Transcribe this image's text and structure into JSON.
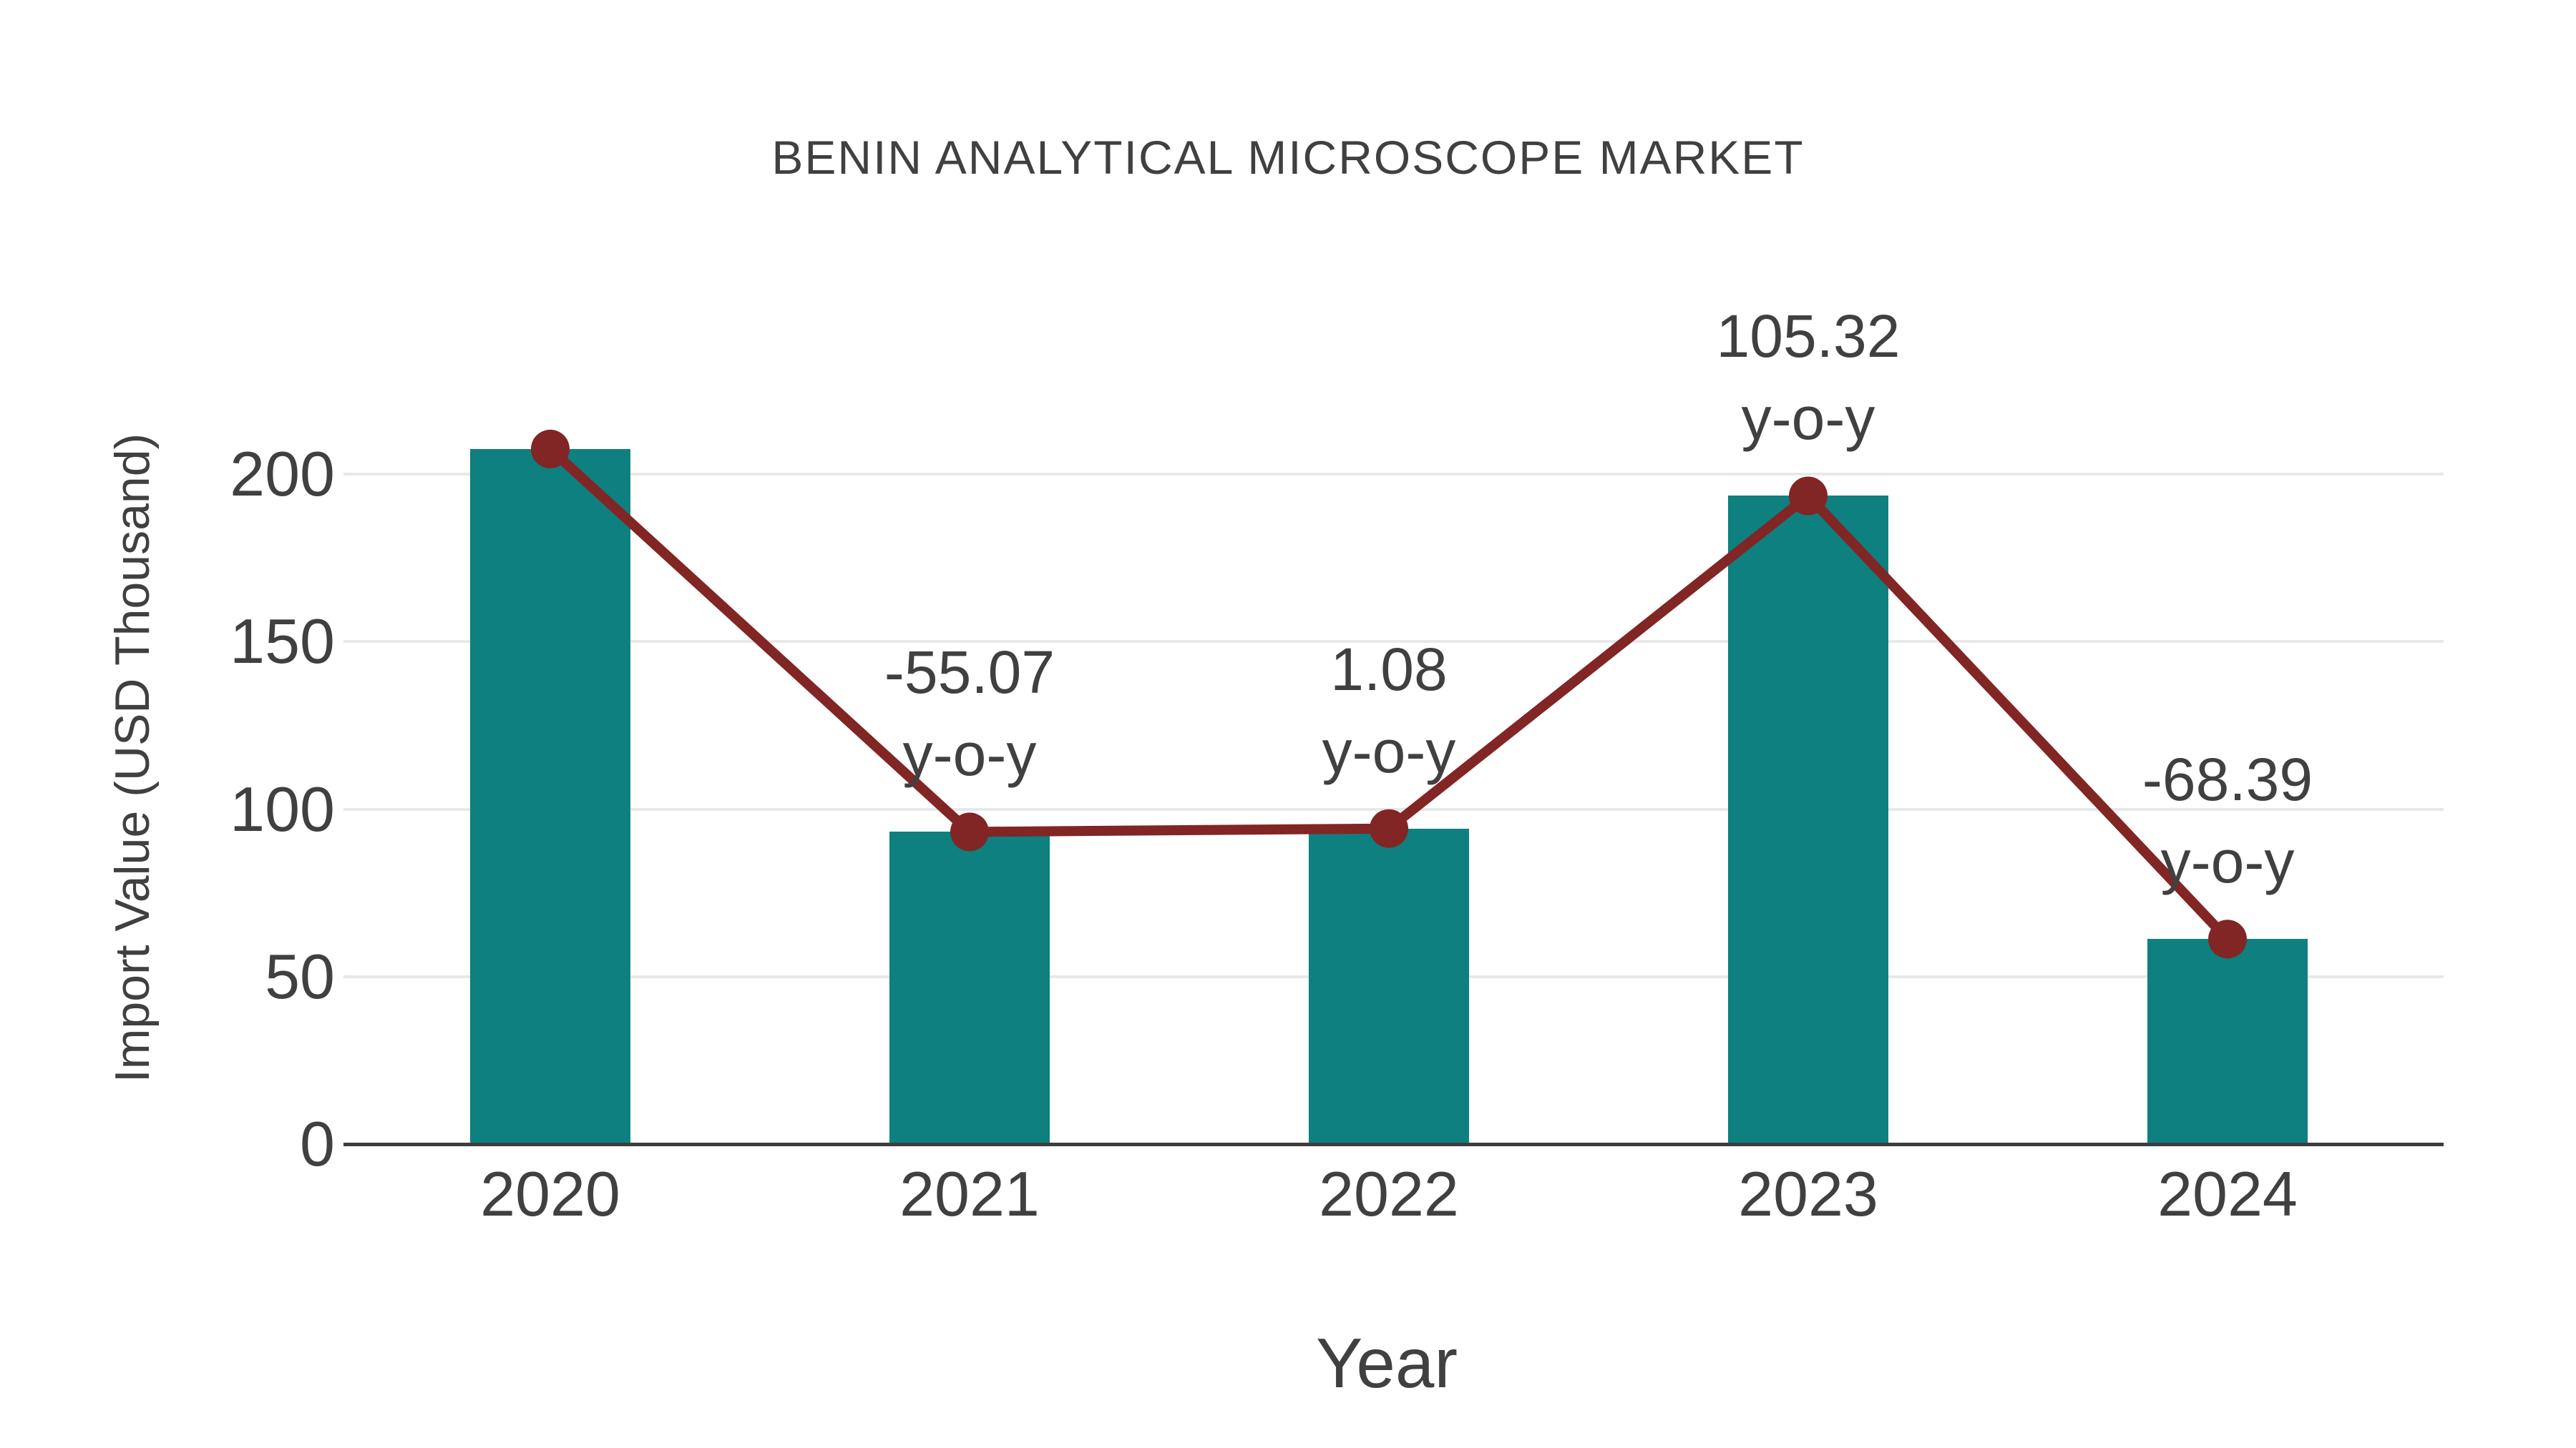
{
  "chart_data": {
    "type": "bar",
    "title": "BENIN ANALYTICAL MICROSCOPE MARKET",
    "xlabel": "Year",
    "ylabel": "Import Value (USD Thousand)",
    "categories": [
      "2020",
      "2021",
      "2022",
      "2023",
      "2024"
    ],
    "series": [
      {
        "name": "Import Value (bars)",
        "type": "bar",
        "color": "#0d807f",
        "values": [
          207.5,
          93.2,
          94.2,
          193.5,
          61.2
        ]
      },
      {
        "name": "Import Value trend (line with markers)",
        "type": "line",
        "color": "#822525",
        "values": [
          207.5,
          93.2,
          94.2,
          193.5,
          61.2
        ]
      }
    ],
    "annotations": [
      {
        "category": "2021",
        "line1": "-55.07",
        "line2": "y-o-y"
      },
      {
        "category": "2022",
        "line1": "1.08",
        "line2": "y-o-y"
      },
      {
        "category": "2023",
        "line1": "105.32",
        "line2": "y-o-y"
      },
      {
        "category": "2024",
        "line1": "-68.39",
        "line2": "y-o-y"
      }
    ],
    "yticks": [
      0,
      50,
      100,
      150,
      200
    ],
    "ylim": [
      0,
      222
    ],
    "grid": "horizontal",
    "legend": "none",
    "colors": {
      "bar": "#0d807f",
      "line": "#822525",
      "marker": "#822525",
      "grid": "#e8e8e8",
      "axis": "#3d3d3d",
      "text": "#404040",
      "background": "#ffffff"
    }
  }
}
